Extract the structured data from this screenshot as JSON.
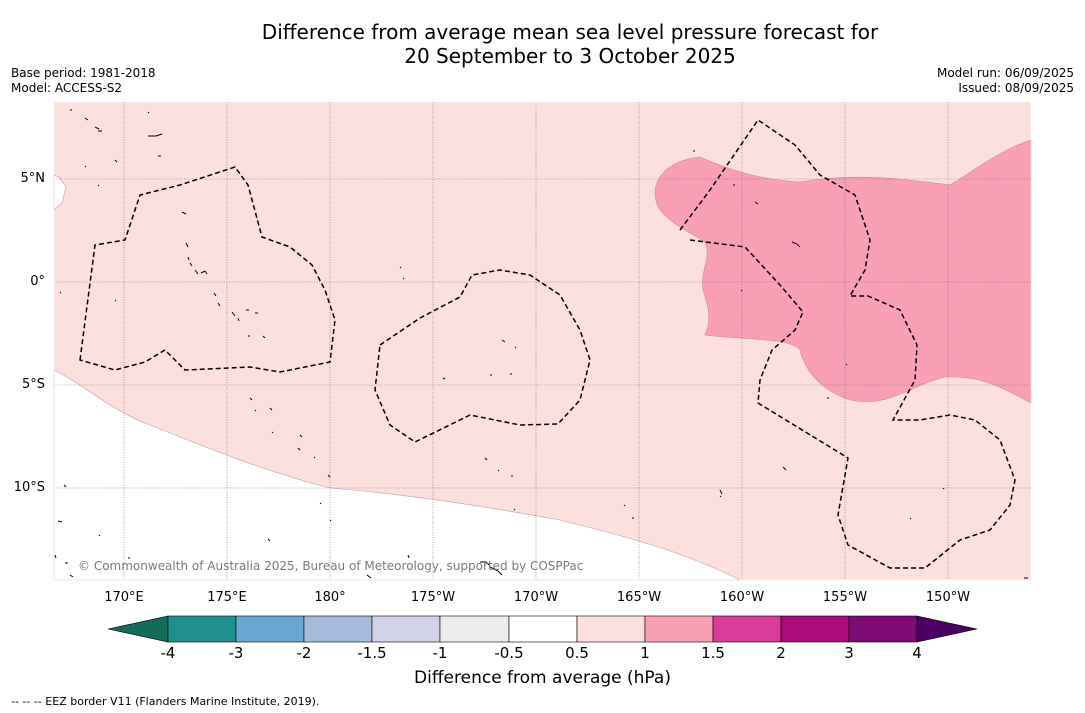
{
  "title": {
    "line1": "Difference from average mean sea level pressure forecast for",
    "line2": "20 September to 3 October 2025"
  },
  "meta": {
    "base_period": "Base period: 1981-2018",
    "model": "Model: ACCESS-S2",
    "model_run": "Model run: 06/09/2025",
    "issued": "Issued: 08/09/2025"
  },
  "map": {
    "lat_labels": [
      "5°N",
      "0°",
      "5°S",
      "10°S"
    ],
    "lon_labels": [
      "170°E",
      "175°E",
      "180°",
      "175°W",
      "170°W",
      "165°W",
      "160°W",
      "155°W",
      "150°W"
    ],
    "copyright": "© Commonwealth of Australia 2025, Bureau of Meteorology, supported by COSPPac",
    "fill_colors": {
      "range_0.5_1": "#fce0dd",
      "range_1_1.5": "#f9a0b7"
    }
  },
  "colorbar": {
    "title": "Difference from average (hPa)",
    "ticks": [
      "-4",
      "-3",
      "-2",
      "-1.5",
      "-1",
      "-0.5",
      "0.5",
      "1",
      "1.5",
      "2",
      "3",
      "4"
    ],
    "colors": [
      "#136b5a",
      "#20908f",
      "#6aa8d2",
      "#a7bcdd",
      "#d1d1e8",
      "#ececec",
      "#ffffff",
      "#fce0dd",
      "#f9a0b7",
      "#d93b9b",
      "#ad0a7b",
      "#7e0a74",
      "#4b0066"
    ]
  },
  "footnote": "--  --  -- EEZ border V11 (Flanders Marine Institute, 2019)."
}
